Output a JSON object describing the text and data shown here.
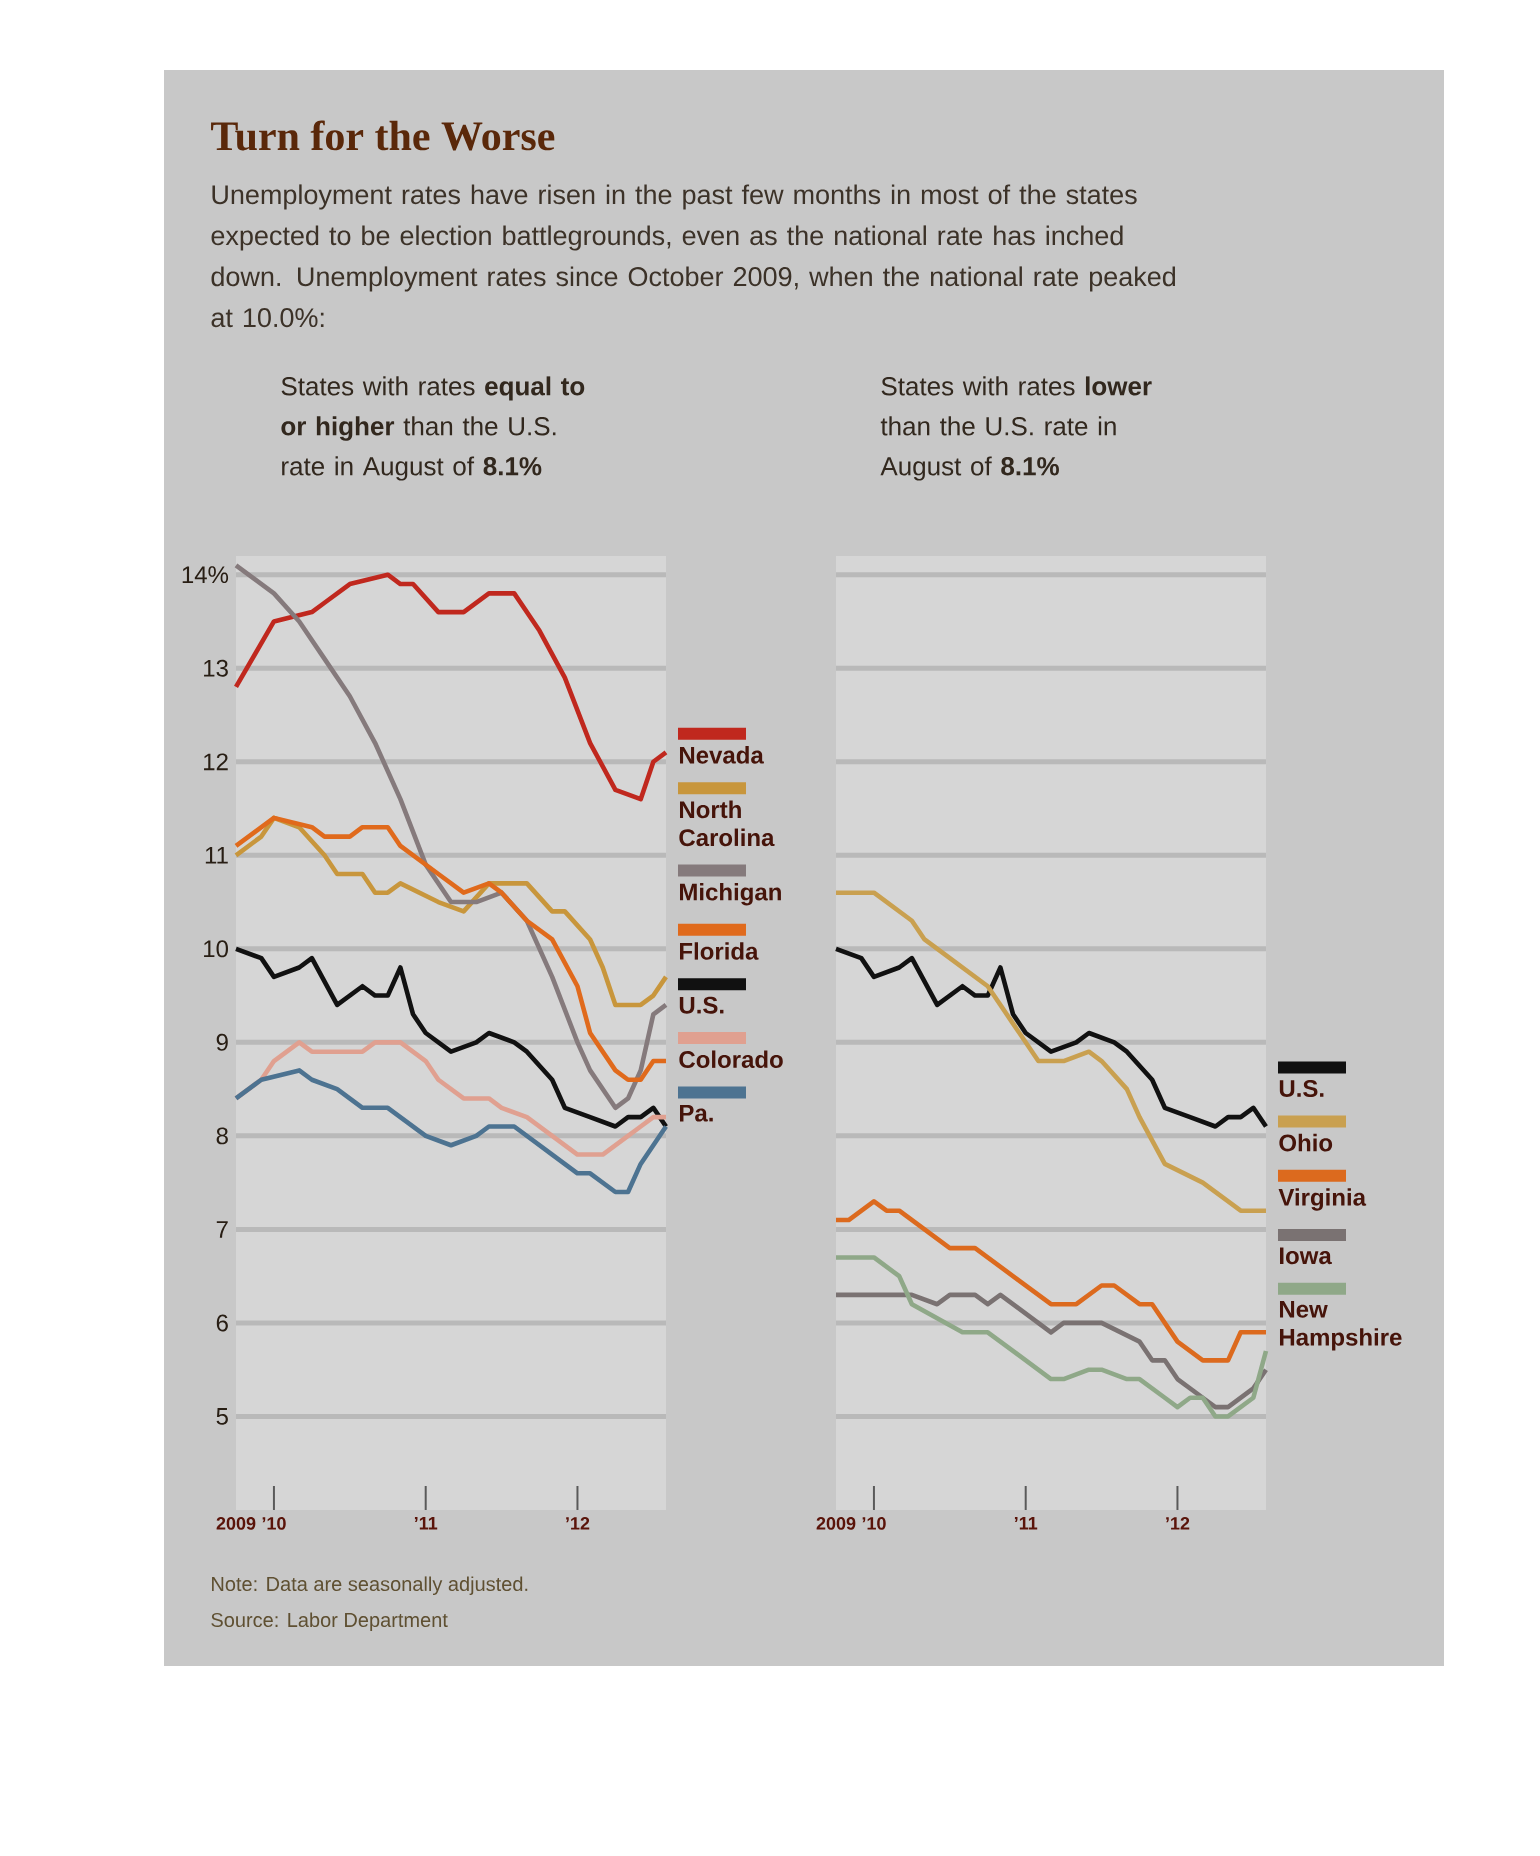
{
  "chart_data": [
    {
      "type": "line",
      "title": "Turn for the Worse",
      "subtitle": "States with rates **equal to or higher** than the U.S. rate in August of **8.1%**",
      "annotations": [
        "Unemployment rates have risen in the past few months in most of the states expected to be election battlegrounds, even as the national rate has inched down. Unemployment rates since October 2009, when the national rate peaked at 10.0%:",
        "Note: Data are seasonally adjusted.",
        "Source: Labor Department"
      ],
      "xlim": [
        "2009-10",
        "2012-08"
      ],
      "ylim": [
        4,
        14.2
      ],
      "xticks": [
        {
          "value": "2009-10",
          "label": "2009"
        },
        {
          "value": "2010-01",
          "label": "’10"
        },
        {
          "value": "2011-01",
          "label": "’11"
        },
        {
          "value": "2012-01",
          "label": "’12"
        }
      ],
      "yticks": [
        5,
        6,
        7,
        8,
        9,
        10,
        11,
        12,
        13,
        {
          "value": 14,
          "label": "14%"
        }
      ],
      "grid": "y",
      "legend": "right",
      "series": [
        {
          "name": "Nevada",
          "color": "#c0281e",
          "x": [
            "2009-10",
            "2010-01",
            "2010-04",
            "2010-05",
            "2010-07",
            "2010-10",
            "2010-11",
            "2010-12",
            "2011-02",
            "2011-04",
            "2011-06",
            "2011-08",
            "2011-10",
            "2011-12",
            "2012-02",
            "2012-04",
            "2012-06",
            "2012-07",
            "2012-08"
          ],
          "values": [
            12.8,
            13.5,
            13.6,
            13.7,
            13.9,
            14.0,
            13.9,
            13.9,
            13.6,
            13.6,
            13.8,
            13.8,
            13.4,
            12.9,
            12.2,
            11.7,
            11.6,
            12.0,
            12.1
          ]
        },
        {
          "name": "North Carolina",
          "color": "#c8963c",
          "x": [
            "2009-10",
            "2009-12",
            "2010-01",
            "2010-03",
            "2010-05",
            "2010-06",
            "2010-08",
            "2010-09",
            "2010-10",
            "2010-11",
            "2011-02",
            "2011-04",
            "2011-06",
            "2011-09",
            "2011-11",
            "2011-12",
            "2012-02",
            "2012-03",
            "2012-04",
            "2012-06",
            "2012-07",
            "2012-08"
          ],
          "values": [
            11.0,
            11.2,
            11.4,
            11.3,
            11.0,
            10.8,
            10.8,
            10.6,
            10.6,
            10.7,
            10.5,
            10.4,
            10.7,
            10.7,
            10.4,
            10.4,
            10.1,
            9.8,
            9.4,
            9.4,
            9.5,
            9.7
          ]
        },
        {
          "name": "Michigan",
          "color": "#857a7c",
          "x": [
            "2009-10",
            "2010-01",
            "2010-03",
            "2010-05",
            "2010-07",
            "2010-09",
            "2010-11",
            "2011-01",
            "2011-03",
            "2011-05",
            "2011-07",
            "2011-09",
            "2011-11",
            "2012-01",
            "2012-02",
            "2012-04",
            "2012-05",
            "2012-06",
            "2012-07",
            "2012-08"
          ],
          "values": [
            14.1,
            13.8,
            13.5,
            13.1,
            12.7,
            12.2,
            11.6,
            10.9,
            10.5,
            10.5,
            10.6,
            10.3,
            9.7,
            9.0,
            8.7,
            8.3,
            8.4,
            8.7,
            9.3,
            9.4
          ]
        },
        {
          "name": "Florida",
          "color": "#e06a1c",
          "x": [
            "2009-10",
            "2010-01",
            "2010-04",
            "2010-05",
            "2010-07",
            "2010-08",
            "2010-10",
            "2010-11",
            "2011-02",
            "2011-04",
            "2011-06",
            "2011-07",
            "2011-09",
            "2011-11",
            "2012-01",
            "2012-02",
            "2012-04",
            "2012-05",
            "2012-06",
            "2012-07",
            "2012-08"
          ],
          "values": [
            11.1,
            11.4,
            11.3,
            11.2,
            11.2,
            11.3,
            11.3,
            11.1,
            10.8,
            10.6,
            10.7,
            10.6,
            10.3,
            10.1,
            9.6,
            9.1,
            8.7,
            8.6,
            8.6,
            8.8,
            8.8
          ]
        },
        {
          "name": "U.S.",
          "color": "#111111",
          "x": [
            "2009-10",
            "2009-12",
            "2010-01",
            "2010-03",
            "2010-04",
            "2010-06",
            "2010-08",
            "2010-09",
            "2010-10",
            "2010-11",
            "2010-12",
            "2011-01",
            "2011-03",
            "2011-05",
            "2011-06",
            "2011-08",
            "2011-09",
            "2011-11",
            "2011-12",
            "2012-02",
            "2012-04",
            "2012-05",
            "2012-06",
            "2012-07",
            "2012-08"
          ],
          "values": [
            10.0,
            9.9,
            9.7,
            9.8,
            9.9,
            9.4,
            9.6,
            9.5,
            9.5,
            9.8,
            9.3,
            9.1,
            8.9,
            9.0,
            9.1,
            9.0,
            8.9,
            8.6,
            8.3,
            8.2,
            8.1,
            8.2,
            8.2,
            8.3,
            8.1
          ]
        },
        {
          "name": "Colorado",
          "color": "#e0a090",
          "x": [
            "2009-10",
            "2009-12",
            "2010-01",
            "2010-03",
            "2010-04",
            "2010-08",
            "2010-09",
            "2010-11",
            "2011-01",
            "2011-02",
            "2011-04",
            "2011-06",
            "2011-07",
            "2011-09",
            "2011-11",
            "2012-01",
            "2012-03",
            "2012-05",
            "2012-06",
            "2012-07",
            "2012-08"
          ],
          "values": [
            8.4,
            8.6,
            8.8,
            9.0,
            8.9,
            8.9,
            9.0,
            9.0,
            8.8,
            8.6,
            8.4,
            8.4,
            8.3,
            8.2,
            8.0,
            7.8,
            7.8,
            8.0,
            8.1,
            8.2,
            8.2
          ]
        },
        {
          "name": "Pa.",
          "color": "#4d7391",
          "x": [
            "2009-10",
            "2009-12",
            "2010-03",
            "2010-04",
            "2010-06",
            "2010-08",
            "2010-10",
            "2011-01",
            "2011-03",
            "2011-05",
            "2011-06",
            "2011-08",
            "2011-11",
            "2012-01",
            "2012-02",
            "2012-04",
            "2012-05",
            "2012-06",
            "2012-08"
          ],
          "values": [
            8.4,
            8.6,
            8.7,
            8.6,
            8.5,
            8.3,
            8.3,
            8.0,
            7.9,
            8.0,
            8.1,
            8.1,
            7.8,
            7.6,
            7.6,
            7.4,
            7.4,
            7.7,
            8.1
          ]
        }
      ]
    },
    {
      "type": "line",
      "subtitle": "States with rates **lower** than the U.S. rate in August of **8.1%**",
      "xlim": [
        "2009-10",
        "2012-08"
      ],
      "ylim": [
        4,
        14.2
      ],
      "xticks": [
        {
          "value": "2009-10",
          "label": "2009"
        },
        {
          "value": "2010-01",
          "label": "’10"
        },
        {
          "value": "2011-01",
          "label": "’11"
        },
        {
          "value": "2012-01",
          "label": "’12"
        }
      ],
      "yticks": [
        5,
        6,
        7,
        8,
        9,
        10,
        11,
        12,
        13,
        14
      ],
      "tick_labels": "x",
      "grid": "y",
      "legend": "bottom right",
      "series": [
        {
          "name": "U.S.",
          "color": "#111111",
          "x": [
            "2009-10",
            "2009-12",
            "2010-01",
            "2010-03",
            "2010-04",
            "2010-06",
            "2010-08",
            "2010-09",
            "2010-10",
            "2010-11",
            "2010-12",
            "2011-01",
            "2011-03",
            "2011-05",
            "2011-06",
            "2011-08",
            "2011-09",
            "2011-11",
            "2011-12",
            "2012-02",
            "2012-04",
            "2012-05",
            "2012-06",
            "2012-07",
            "2012-08"
          ],
          "values": [
            10.0,
            9.9,
            9.7,
            9.8,
            9.9,
            9.4,
            9.6,
            9.5,
            9.5,
            9.8,
            9.3,
            9.1,
            8.9,
            9.0,
            9.1,
            9.0,
            8.9,
            8.6,
            8.3,
            8.2,
            8.1,
            8.2,
            8.2,
            8.3,
            8.1
          ]
        },
        {
          "name": "Ohio",
          "color": "#c9a050",
          "x": [
            "2009-10",
            "2010-01",
            "2010-04",
            "2010-05",
            "2010-07",
            "2010-10",
            "2010-12",
            "2011-02",
            "2011-04",
            "2011-06",
            "2011-07",
            "2011-09",
            "2011-10",
            "2011-12",
            "2012-03",
            "2012-06",
            "2012-08"
          ],
          "values": [
            10.6,
            10.6,
            10.3,
            10.1,
            9.9,
            9.6,
            9.2,
            8.8,
            8.8,
            8.9,
            8.8,
            8.5,
            8.2,
            7.7,
            7.5,
            7.2,
            7.2
          ]
        },
        {
          "name": "Virginia",
          "color": "#dc6a1e",
          "x": [
            "2009-10",
            "2009-11",
            "2010-01",
            "2010-02",
            "2010-03",
            "2010-07",
            "2010-09",
            "2011-03",
            "2011-05",
            "2011-07",
            "2011-08",
            "2011-10",
            "2011-11",
            "2012-01",
            "2012-03",
            "2012-05",
            "2012-06",
            "2012-08"
          ],
          "values": [
            7.1,
            7.1,
            7.3,
            7.2,
            7.2,
            6.8,
            6.8,
            6.2,
            6.2,
            6.4,
            6.4,
            6.2,
            6.2,
            5.8,
            5.6,
            5.6,
            5.9,
            5.9
          ]
        },
        {
          "name": "Iowa",
          "color": "#7a7272",
          "x": [
            "2009-10",
            "2010-04",
            "2010-06",
            "2010-07",
            "2010-09",
            "2010-10",
            "2010-11",
            "2011-03",
            "2011-04",
            "2011-07",
            "2011-10",
            "2011-11",
            "2011-12",
            "2012-01",
            "2012-03",
            "2012-04",
            "2012-05",
            "2012-07",
            "2012-08"
          ],
          "values": [
            6.3,
            6.3,
            6.2,
            6.3,
            6.3,
            6.2,
            6.3,
            5.9,
            6.0,
            6.0,
            5.8,
            5.6,
            5.6,
            5.4,
            5.2,
            5.1,
            5.1,
            5.3,
            5.5
          ]
        },
        {
          "name": "New Hampshire",
          "color": "#8fa888",
          "x": [
            "2009-10",
            "2010-01",
            "2010-03",
            "2010-04",
            "2010-08",
            "2010-10",
            "2011-03",
            "2011-04",
            "2011-06",
            "2011-07",
            "2011-09",
            "2011-10",
            "2011-12",
            "2012-01",
            "2012-02",
            "2012-03",
            "2012-04",
            "2012-05",
            "2012-07",
            "2012-08"
          ],
          "values": [
            6.7,
            6.7,
            6.5,
            6.2,
            5.9,
            5.9,
            5.4,
            5.4,
            5.5,
            5.5,
            5.4,
            5.4,
            5.2,
            5.1,
            5.2,
            5.2,
            5.0,
            5.0,
            5.2,
            5.7
          ]
        }
      ]
    }
  ]
}
